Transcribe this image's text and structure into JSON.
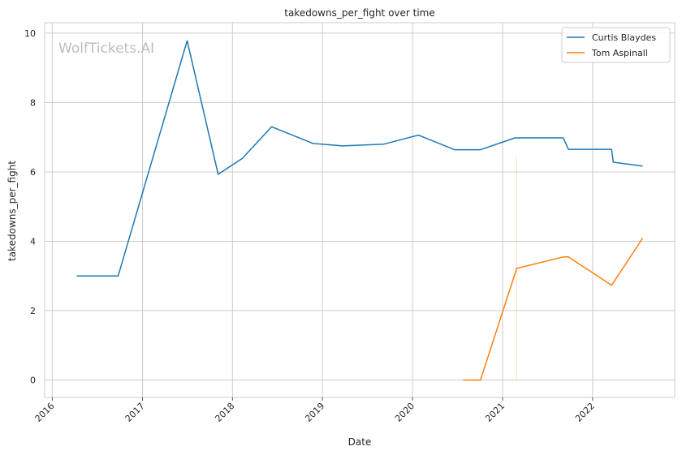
{
  "chart_data": {
    "type": "line",
    "title": "takedowns_per_fight over time",
    "xlabel": "Date",
    "ylabel": "takedowns_per_fight",
    "xlim": [
      "2015-12-01",
      "2022-11-30"
    ],
    "ylim": [
      -0.5,
      10.3
    ],
    "yticks": [
      0,
      2,
      4,
      6,
      8,
      10
    ],
    "xticks": [
      "2016-01-01",
      "2017-01-01",
      "2018-01-01",
      "2019-01-01",
      "2020-01-01",
      "2021-01-01",
      "2022-01-01"
    ],
    "xtick_labels": [
      "2016",
      "2017",
      "2018",
      "2019",
      "2020",
      "2021",
      "2022"
    ],
    "grid": true,
    "legend_position": "top-right",
    "watermark": "WolfTickets.AI",
    "series": [
      {
        "name": "Curtis Blaydes",
        "color": "#1f77b4",
        "points": [
          {
            "x": "2016-04-09",
            "y": 3.0
          },
          {
            "x": "2016-09-24",
            "y": 3.0
          },
          {
            "x": "2017-07-01",
            "y": 9.78
          },
          {
            "x": "2017-11-04",
            "y": 5.93
          },
          {
            "x": "2018-02-10",
            "y": 6.39
          },
          {
            "x": "2018-06-09",
            "y": 7.3
          },
          {
            "x": "2018-11-24",
            "y": 6.82
          },
          {
            "x": "2019-03-23",
            "y": 6.75
          },
          {
            "x": "2019-09-07",
            "y": 6.8
          },
          {
            "x": "2020-01-25",
            "y": 7.06
          },
          {
            "x": "2020-06-20",
            "y": 6.64
          },
          {
            "x": "2020-10-03",
            "y": 6.64
          },
          {
            "x": "2021-02-20",
            "y": 6.98
          },
          {
            "x": "2021-09-04",
            "y": 6.98
          },
          {
            "x": "2021-09-25",
            "y": 6.65
          },
          {
            "x": "2022-03-19",
            "y": 6.65
          },
          {
            "x": "2022-03-26",
            "y": 6.28
          },
          {
            "x": "2022-07-23",
            "y": 6.17
          }
        ]
      },
      {
        "name": "Tom Aspinall",
        "color": "#ff7f0e",
        "points": [
          {
            "x": "2020-07-25",
            "y": 0.0
          },
          {
            "x": "2020-10-03",
            "y": 0.0
          },
          {
            "x": "2021-02-27",
            "y": 3.22
          },
          {
            "x": "2021-09-04",
            "y": 3.55
          },
          {
            "x": "2021-09-25",
            "y": 3.55
          },
          {
            "x": "2022-03-19",
            "y": 2.73
          },
          {
            "x": "2022-07-23",
            "y": 4.09
          }
        ]
      }
    ]
  }
}
